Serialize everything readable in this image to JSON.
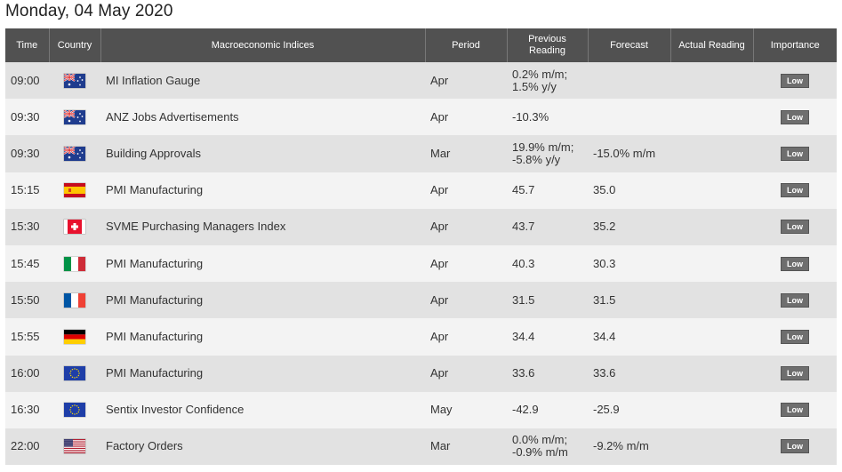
{
  "page": {
    "title": "Monday, 04 May 2020"
  },
  "columns": {
    "time": "Time",
    "country": "Country",
    "index": "Macroeconomic Indices",
    "period": "Period",
    "previous_line1": "Previous",
    "previous_line2": "Reading",
    "forecast": "Forecast",
    "actual": "Actual Reading",
    "importance": "Importance"
  },
  "rows": [
    {
      "time": "09:00",
      "flag": "australia-flag-icon",
      "index": "MI Inflation Gauge",
      "period": "Apr",
      "prev1": "0.2% m/m;",
      "prev2": "1.5% y/y",
      "forecast": "",
      "actual": "",
      "importance": "Low"
    },
    {
      "time": "09:30",
      "flag": "australia-flag-icon",
      "index": "ANZ Jobs Advertisements",
      "period": "Apr",
      "prev1": "-10.3%",
      "prev2": "",
      "forecast": "",
      "actual": "",
      "importance": "Low"
    },
    {
      "time": "09:30",
      "flag": "australia-flag-icon",
      "index": "Building Approvals",
      "period": "Mar",
      "prev1": "19.9% m/m;",
      "prev2": "-5.8% y/y",
      "forecast": "-15.0% m/m",
      "actual": "",
      "importance": "Low"
    },
    {
      "time": "15:15",
      "flag": "spain-flag-icon",
      "index": "PMI Manufacturing",
      "period": "Apr",
      "prev1": "45.7",
      "prev2": "",
      "forecast": "35.0",
      "actual": "",
      "importance": "Low"
    },
    {
      "time": "15:30",
      "flag": "switzerland-flag-icon",
      "index": "SVME Purchasing Managers Index",
      "period": "Apr",
      "prev1": "43.7",
      "prev2": "",
      "forecast": "35.2",
      "actual": "",
      "importance": "Low"
    },
    {
      "time": "15:45",
      "flag": "italy-flag-icon",
      "index": "PMI Manufacturing",
      "period": "Apr",
      "prev1": "40.3",
      "prev2": "",
      "forecast": "30.3",
      "actual": "",
      "importance": "Low"
    },
    {
      "time": "15:50",
      "flag": "france-flag-icon",
      "index": "PMI Manufacturing",
      "period": "Apr",
      "prev1": "31.5",
      "prev2": "",
      "forecast": "31.5",
      "actual": "",
      "importance": "Low"
    },
    {
      "time": "15:55",
      "flag": "germany-flag-icon",
      "index": "PMI Manufacturing",
      "period": "Apr",
      "prev1": "34.4",
      "prev2": "",
      "forecast": "34.4",
      "actual": "",
      "importance": "Low"
    },
    {
      "time": "16:00",
      "flag": "eu-flag-icon",
      "index": "PMI Manufacturing",
      "period": "Apr",
      "prev1": "33.6",
      "prev2": "",
      "forecast": "33.6",
      "actual": "",
      "importance": "Low"
    },
    {
      "time": "16:30",
      "flag": "eu-flag-icon",
      "index": "Sentix Investor Confidence",
      "period": "May",
      "prev1": "-42.9",
      "prev2": "",
      "forecast": "-25.9",
      "actual": "",
      "importance": "Low"
    },
    {
      "time": "22:00",
      "flag": "usa-flag-icon",
      "index": "Factory Orders",
      "period": "Mar",
      "prev1": "0.0% m/m;",
      "prev2": "-0.9% m/m",
      "forecast": "-9.2% m/m",
      "actual": "",
      "importance": "Low"
    }
  ],
  "colors": {
    "header_bg": "#515151",
    "row_odd": "#e2e2e2",
    "row_even": "#f3f3f3",
    "badge_bg": "#6e6e6e"
  }
}
